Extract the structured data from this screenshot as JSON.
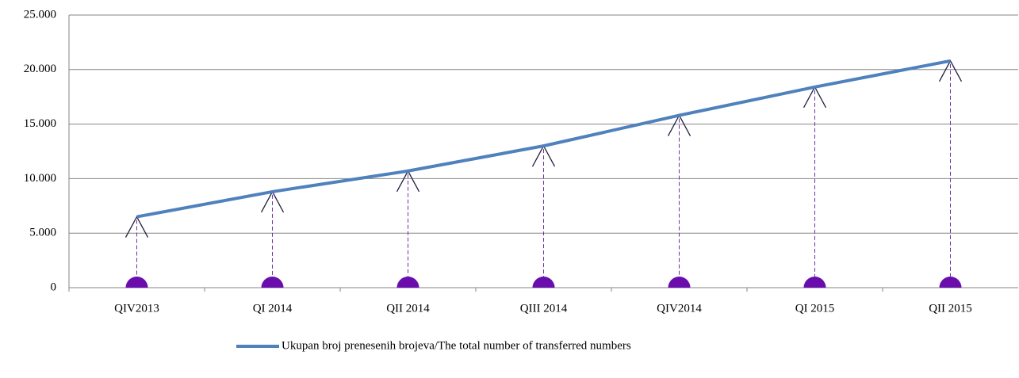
{
  "chart_data": {
    "type": "line",
    "categories": [
      "QIV2013",
      "QI 2014",
      "QII 2014",
      "QIII 2014",
      "QIV2014",
      "QI 2015",
      "QII 2015"
    ],
    "series": [
      {
        "name": "Ukupan broj prenesenih brojeva/The total number of transferred numbers",
        "color": "#4f81bd",
        "values": [
          6500,
          8800,
          10700,
          13000,
          15800,
          18400,
          20800
        ]
      }
    ],
    "ylim": [
      0,
      25000
    ],
    "yticks": [
      0,
      {
        "value": 5000,
        "label": "5.000"
      },
      {
        "value": 10000,
        "label": "10.000"
      },
      {
        "value": 15000,
        "label": "15.000"
      },
      {
        "value": 20000,
        "label": "20.000"
      },
      {
        "value": 25000,
        "label": "25.000"
      }
    ],
    "grid": true,
    "legend": "bottom"
  }
}
